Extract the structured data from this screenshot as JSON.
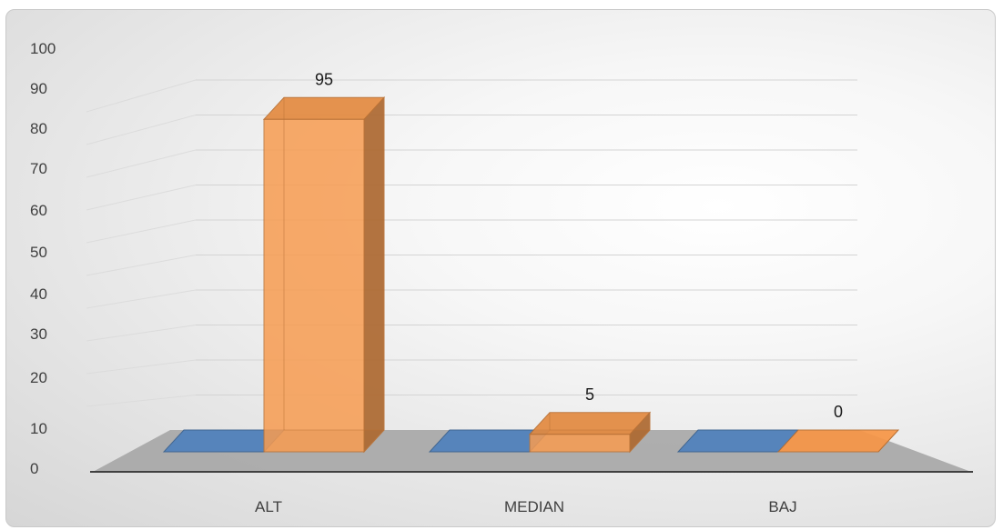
{
  "chart_data": {
    "type": "bar",
    "style": "3d-column",
    "categories": [
      "ALT",
      "MEDIAN",
      "BAJ"
    ],
    "series": [
      {
        "values": [
          0,
          0,
          0
        ],
        "color": "#4f81bd",
        "show_labels": false
      },
      {
        "values": [
          95,
          5,
          0
        ],
        "color": "#f79646",
        "show_labels": true
      }
    ],
    "y_ticks": [
      "0",
      "10",
      "20",
      "30",
      "40",
      "50",
      "60",
      "70",
      "80",
      "90",
      "100"
    ],
    "ylim": [
      0,
      100
    ],
    "title": "",
    "xlabel": "",
    "ylabel": "",
    "grid": true,
    "legend": "none"
  }
}
